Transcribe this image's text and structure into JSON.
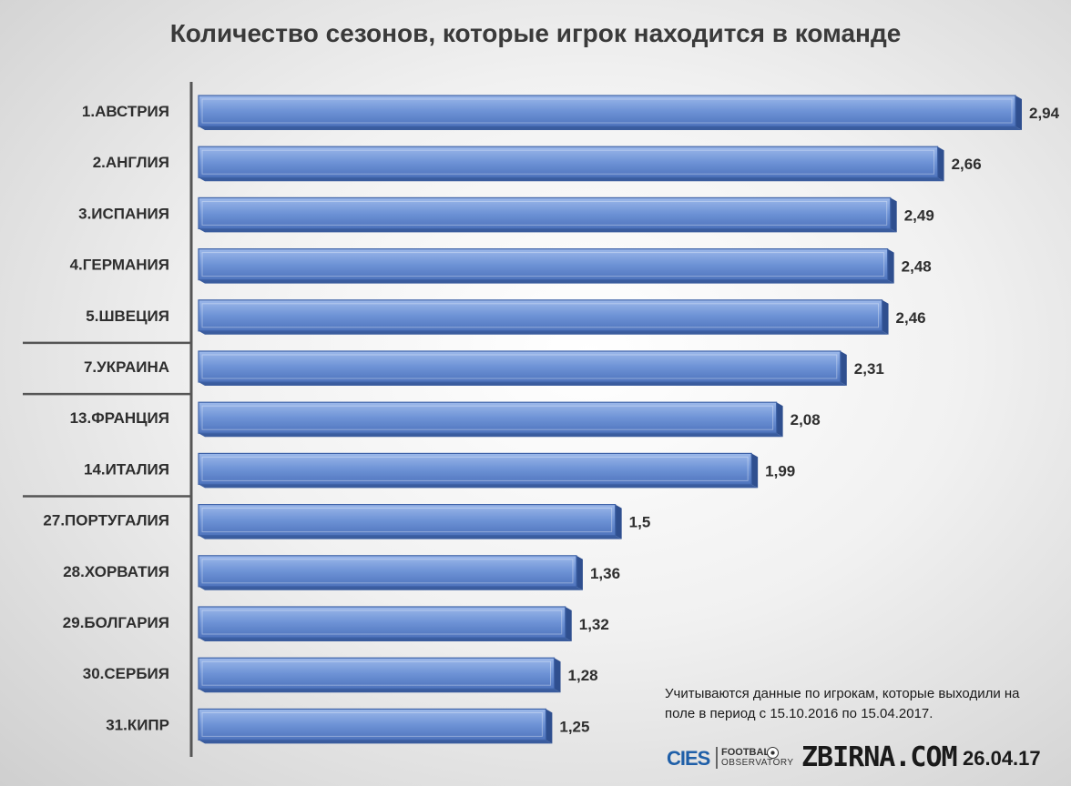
{
  "chart_data": {
    "type": "bar",
    "orientation": "horizontal",
    "title": "Количество сезонов, которые игрок находится в команде",
    "categories": [
      "1.АВСТРИЯ",
      "2.АНГЛИЯ",
      "3.ИСПАНИЯ",
      "4.ГЕРМАНИЯ",
      "5.ШВЕЦИЯ",
      "7.УКРАИНА",
      "13.ФРАНЦИЯ",
      "14.ИТАЛИЯ",
      "27.ПОРТУГАЛИЯ",
      "28.ХОРВАТИЯ",
      "29.БОЛГАРИЯ",
      "30.СЕРБИЯ",
      "31.КИПР"
    ],
    "values": [
      2.94,
      2.66,
      2.49,
      2.48,
      2.46,
      2.31,
      2.08,
      1.99,
      1.5,
      1.36,
      1.32,
      1.28,
      1.25
    ],
    "value_labels": [
      "2,94",
      "2,66",
      "2,49",
      "2,48",
      "2,46",
      "2,31",
      "2,08",
      "1,99",
      "1,5",
      "1,36",
      "1,32",
      "1,28",
      "1,25"
    ],
    "xlim": [
      0,
      2.94
    ],
    "group_separators_after_index": [
      4,
      5,
      7
    ],
    "bar_color": "#6f95d8",
    "bar_edge_color": "#3f63a8",
    "grid": false,
    "legend": false
  },
  "note": "Учитываются данные по игрокам, которые выходили на поле в период с 15.10.2016 по 15.04.2017.",
  "footer": {
    "cies": "CIES",
    "football": "FOOTBALL",
    "observatory": "OBSERVATORY",
    "site": "ZBIRNA.COM",
    "date": "26.04.17"
  }
}
